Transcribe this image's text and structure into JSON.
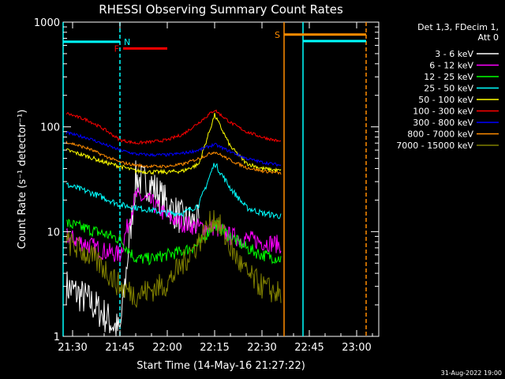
{
  "chart_data": {
    "type": "line",
    "title": "RHESSI Observing Summary Count Rates",
    "xlabel": "Start Time (14-May-16 21:27:22)",
    "ylabel": "Count Rate (s⁻¹ detector⁻¹)",
    "y_scale": "log",
    "ylim": [
      1,
      1000
    ],
    "xlim": [
      "21:27",
      "23:07"
    ],
    "x_tick_labels": [
      "21:30",
      "21:45",
      "22:00",
      "22:15",
      "22:30",
      "22:45",
      "23:00"
    ],
    "y_tick_labels": [
      "1",
      "10",
      "100",
      "1000"
    ],
    "grid": false,
    "legend_position": "right",
    "legend_header": [
      "Det 1,3, FDecim 1,",
      "Att 0"
    ],
    "timestamp": "31-Aug-2022 19:00",
    "flags": [
      {
        "label": "N",
        "color": "#00ffff",
        "start": "21:27",
        "end": "21:45",
        "level": 650
      },
      {
        "label": "F",
        "color": "#ff0000",
        "start": "21:46",
        "end": "22:00",
        "level": 560
      },
      {
        "label": "S",
        "color": "#ff8c00",
        "start": "22:37",
        "end": "23:03",
        "level": 760
      },
      {
        "label": "",
        "color": "#00ffff",
        "start": "22:43",
        "end": "23:03",
        "level": 660
      }
    ],
    "markers": [
      {
        "time": "21:27",
        "color": "#00ffff",
        "style": "solid"
      },
      {
        "time": "21:45",
        "color": "#00ffff",
        "style": "dashed"
      },
      {
        "time": "22:37",
        "color": "#ff8c00",
        "style": "solid"
      },
      {
        "time": "22:43",
        "color": "#00ffff",
        "style": "solid"
      },
      {
        "time": "23:03",
        "color": "#ff8c00",
        "style": "dashed"
      }
    ],
    "x": [
      "21:28",
      "21:35",
      "21:40",
      "21:45",
      "21:50",
      "21:55",
      "22:00",
      "22:05",
      "22:10",
      "22:15",
      "22:20",
      "22:25",
      "22:30",
      "22:36"
    ],
    "series": [
      {
        "name": "3 - 6 keV",
        "color": "#ffffff",
        "values": [
          3,
          2.2,
          1.6,
          1.1,
          32,
          28,
          18,
          13,
          12,
          null,
          null,
          null,
          null,
          null
        ]
      },
      {
        "name": "6 - 12 keV",
        "color": "#ff00ff",
        "values": [
          9,
          7.5,
          6.5,
          6,
          22,
          19,
          14,
          12,
          11,
          11,
          9,
          8.5,
          8,
          7.5
        ]
      },
      {
        "name": "12 - 25 keV",
        "color": "#00ff00",
        "values": [
          12,
          10.5,
          9.5,
          8.5,
          5.5,
          5.5,
          6,
          6.5,
          7.5,
          12,
          9,
          7,
          6,
          5.5
        ]
      },
      {
        "name": "25 - 50 keV",
        "color": "#00ffff",
        "values": [
          28,
          24,
          21,
          18,
          17,
          16,
          15,
          15,
          18,
          45,
          26,
          17,
          15,
          14
        ]
      },
      {
        "name": "50 - 100 keV",
        "color": "#ffff00",
        "values": [
          60,
          52,
          46,
          42,
          38,
          37,
          37,
          38,
          44,
          130,
          65,
          45,
          40,
          38
        ]
      },
      {
        "name": "100 - 300 keV",
        "color": "#ff0000",
        "values": [
          135,
          115,
          95,
          75,
          70,
          72,
          75,
          85,
          110,
          145,
          110,
          90,
          80,
          72
        ]
      },
      {
        "name": "300 - 800 keV",
        "color": "#0000ff",
        "values": [
          88,
          78,
          68,
          60,
          55,
          54,
          54,
          56,
          60,
          68,
          58,
          50,
          46,
          43
        ]
      },
      {
        "name": "800 - 7000 keV",
        "color": "#ff8c00",
        "values": [
          72,
          62,
          53,
          46,
          43,
          42,
          42,
          44,
          50,
          58,
          48,
          41,
          38,
          36
        ]
      },
      {
        "name": "7000 - 15000 keV",
        "color": "#808000",
        "values": [
          8,
          6,
          4.5,
          3,
          2.5,
          2.8,
          3.2,
          5,
          8,
          14,
          7,
          4,
          3,
          2.5
        ]
      }
    ]
  }
}
